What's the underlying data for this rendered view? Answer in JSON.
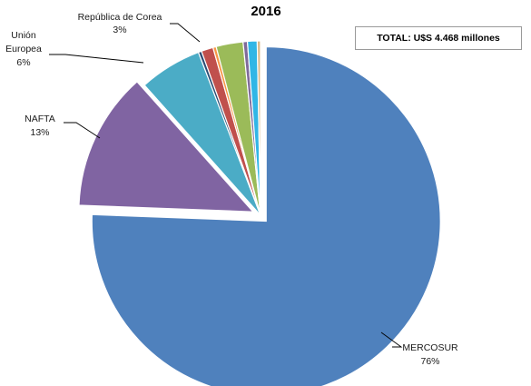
{
  "chart_data": {
    "type": "pie",
    "title": "2016",
    "total_label": "TOTAL: U$S 4.468 millones",
    "slices": [
      {
        "name": "MERCOSUR",
        "value": 75.6,
        "label": "MERCOSUR",
        "pct_label": "76%",
        "color": "#4F81BD",
        "exploded": true
      },
      {
        "name": "NAFTA",
        "value": 12.8,
        "label": "NAFTA",
        "pct_label": "13%",
        "color": "#8064A2",
        "exploded": true
      },
      {
        "name": "Unión Europea",
        "value": 5.8,
        "label": "Unión Europea",
        "pct_label": "6%",
        "color": "#4BACC6",
        "exploded": false
      },
      {
        "name": "Slice 4",
        "value": 0.3,
        "color": "#2C4D75",
        "exploded": false
      },
      {
        "name": "Slice 5",
        "value": 1.1,
        "color": "#C0504D",
        "exploded": false
      },
      {
        "name": "Slice 6",
        "value": 0.3,
        "color": "#F79646",
        "exploded": false
      },
      {
        "name": "República de Corea",
        "value": 2.5,
        "label": "República de Corea",
        "pct_label": "3%",
        "color": "#9BBB59",
        "exploded": false
      },
      {
        "name": "Slice 8",
        "value": 0.4,
        "color": "#7F6A9B",
        "exploded": false
      },
      {
        "name": "Slice 9",
        "value": 0.9,
        "color": "#31B6E6",
        "exploded": false
      },
      {
        "name": "Slice 10",
        "value": 0.3,
        "color": "#D9B98A",
        "exploded": false
      }
    ]
  }
}
